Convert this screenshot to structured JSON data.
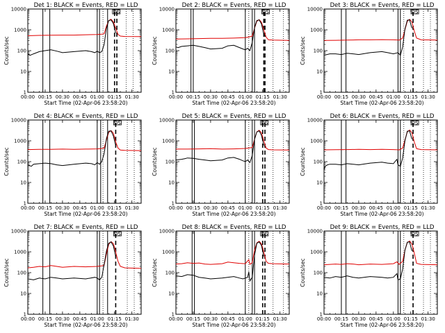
{
  "chart_data": [
    {
      "type": "line",
      "title": "Det 1: BLACK = Events, RED = LLD",
      "ylabel": "Counts/sec",
      "xlabel": "Start Time (02-Apr-06 23:58:20)",
      "bracket_label": "DS",
      "x_tick_labels": [
        "00:00",
        "00:15",
        "00:30",
        "00:45",
        "01:00",
        "01:15",
        "01:30"
      ],
      "x_ticks_min": [
        0,
        15,
        30,
        45,
        60,
        75,
        90
      ],
      "y_tick_labels": [
        "1",
        "10",
        "100",
        "1000",
        "10000"
      ],
      "ylim": [
        1,
        10000
      ],
      "yscale": "log",
      "xlim": [
        0,
        98
      ],
      "solid_markers_min": [
        13,
        19,
        60,
        62,
        69
      ],
      "dotted_markers_min": [
        65,
        85,
        91
      ],
      "dashed_markers_min": [
        75,
        77
      ],
      "red_series": {
        "x": [
          0,
          10,
          20,
          30,
          40,
          50,
          60,
          64,
          66,
          68,
          70,
          72,
          74,
          76,
          78,
          80,
          84,
          98
        ],
        "y": [
          520,
          540,
          550,
          560,
          560,
          580,
          600,
          620,
          650,
          1500,
          2800,
          3200,
          2400,
          1200,
          600,
          500,
          480,
          470
        ]
      },
      "black_series": {
        "x": [
          0,
          2,
          5,
          10,
          15,
          20,
          25,
          30,
          40,
          50,
          55,
          58,
          60,
          62,
          64,
          66,
          68,
          70,
          72,
          74,
          76
        ],
        "y": [
          70,
          60,
          70,
          90,
          100,
          110,
          95,
          80,
          90,
          100,
          90,
          80,
          95,
          80,
          90,
          200,
          1200,
          2800,
          3000,
          2000,
          700
        ]
      }
    },
    {
      "type": "line",
      "title": "Det 2: BLACK = Events, RED = LLD",
      "ylabel": "Counts/sec",
      "xlabel": "Start Time (02-Apr-06 23:58:20)",
      "bracket_label": "DS",
      "x_tick_labels": [
        "00:00",
        "00:15",
        "00:30",
        "00:45",
        "01:00",
        "01:15",
        "01:30"
      ],
      "x_ticks_min": [
        0,
        15,
        30,
        45,
        60,
        75,
        90
      ],
      "y_tick_labels": [
        "1",
        "10",
        "100",
        "1000",
        "10000"
      ],
      "ylim": [
        1,
        10000
      ],
      "yscale": "log",
      "xlim": [
        0,
        98
      ],
      "solid_markers_min": [
        13,
        15,
        60,
        66,
        68
      ],
      "dotted_markers_min": [
        63,
        84,
        93
      ],
      "dashed_markers_min": [
        76,
        77
      ],
      "red_series": {
        "x": [
          0,
          10,
          20,
          30,
          40,
          50,
          60,
          63,
          66,
          68,
          70,
          72,
          74,
          76,
          78,
          80,
          84,
          98
        ],
        "y": [
          360,
          370,
          380,
          390,
          390,
          400,
          420,
          450,
          500,
          1200,
          2600,
          3100,
          2300,
          1000,
          450,
          330,
          320,
          310
        ]
      },
      "black_series": {
        "x": [
          0,
          2,
          5,
          10,
          15,
          20,
          25,
          30,
          40,
          45,
          50,
          55,
          58,
          60,
          62,
          64,
          66,
          68,
          70,
          72,
          74,
          76
        ],
        "y": [
          150,
          140,
          160,
          170,
          180,
          160,
          140,
          120,
          130,
          170,
          180,
          140,
          120,
          110,
          130,
          100,
          250,
          1300,
          2800,
          3000,
          1900,
          600
        ]
      }
    },
    {
      "type": "line",
      "title": "Det 3: BLACK = Events, RED = LLD",
      "ylabel": "Counts/sec",
      "xlabel": "Start Time (02-Apr-06 23:58:20)",
      "bracket_label": "DS",
      "x_tick_labels": [
        "00:00",
        "00:15",
        "00:30",
        "00:45",
        "01:00",
        "01:15",
        "01:30"
      ],
      "x_ticks_min": [
        0,
        15,
        30,
        45,
        60,
        75,
        90
      ],
      "y_tick_labels": [
        "1",
        "10",
        "100",
        "1000",
        "10000"
      ],
      "ylim": [
        1,
        10000
      ],
      "yscale": "log",
      "xlim": [
        0,
        98
      ],
      "solid_markers_min": [
        15,
        19,
        64,
        66
      ],
      "dotted_markers_min": [
        69,
        86,
        92
      ],
      "dashed_markers_min": [
        77
      ],
      "red_series": {
        "x": [
          0,
          10,
          20,
          30,
          40,
          50,
          60,
          65,
          68,
          70,
          72,
          74,
          76,
          78,
          80,
          84,
          98
        ],
        "y": [
          310,
          315,
          320,
          330,
          330,
          340,
          330,
          320,
          400,
          1000,
          2600,
          3200,
          2400,
          900,
          400,
          330,
          320
        ]
      },
      "black_series": {
        "x": [
          0,
          5,
          10,
          15,
          20,
          25,
          30,
          40,
          50,
          55,
          60,
          64,
          66,
          68,
          70,
          72,
          74,
          76
        ],
        "y": [
          60,
          70,
          70,
          65,
          75,
          70,
          65,
          80,
          90,
          80,
          70,
          80,
          60,
          150,
          1100,
          2900,
          3000,
          1200
        ]
      }
    },
    {
      "type": "line",
      "title": "Det 4: BLACK = Events, RED = LLD",
      "ylabel": "Counts/sec",
      "xlabel": "Start Time (02-Apr-06 23:58:20)",
      "bracket_label": "DS",
      "x_tick_labels": [
        "00:00",
        "00:15",
        "00:30",
        "00:45",
        "01:00",
        "01:15",
        "01:30"
      ],
      "x_ticks_min": [
        0,
        15,
        30,
        45,
        60,
        75,
        90
      ],
      "y_tick_labels": [
        "1",
        "10",
        "100",
        "1000",
        "10000"
      ],
      "ylim": [
        1,
        10000
      ],
      "yscale": "log",
      "xlim": [
        0,
        98
      ],
      "solid_markers_min": [
        13,
        19,
        60,
        63,
        69
      ],
      "dotted_markers_min": [
        65,
        86,
        92
      ],
      "dashed_markers_min": [
        76
      ],
      "red_series": {
        "x": [
          0,
          10,
          20,
          30,
          40,
          50,
          60,
          64,
          66,
          68,
          70,
          72,
          74,
          76,
          78,
          80,
          84,
          98
        ],
        "y": [
          380,
          390,
          390,
          400,
          390,
          400,
          410,
          430,
          450,
          1100,
          2600,
          3100,
          2300,
          900,
          450,
          360,
          350,
          340
        ]
      },
      "black_series": {
        "x": [
          0,
          3,
          5,
          10,
          15,
          20,
          25,
          30,
          40,
          50,
          55,
          58,
          60,
          62,
          64,
          66,
          68,
          70,
          72,
          74,
          76
        ],
        "y": [
          70,
          60,
          75,
          80,
          85,
          80,
          70,
          65,
          75,
          85,
          80,
          70,
          90,
          75,
          100,
          250,
          1300,
          2900,
          3000,
          1700,
          600
        ]
      }
    },
    {
      "type": "line",
      "title": "Det 5: BLACK = Events, RED = LLD",
      "ylabel": "Counts/sec",
      "xlabel": "Start Time (02-Apr-06 23:58:20)",
      "bracket_label": "DS",
      "x_tick_labels": [
        "00:00",
        "00:15",
        "00:30",
        "00:45",
        "01:00",
        "01:15",
        "01:30"
      ],
      "x_ticks_min": [
        0,
        15,
        30,
        45,
        60,
        75,
        90
      ],
      "y_tick_labels": [
        "1",
        "10",
        "100",
        "1000",
        "10000"
      ],
      "ylim": [
        1,
        10000
      ],
      "yscale": "log",
      "xlim": [
        0,
        98
      ],
      "solid_markers_min": [
        14,
        16,
        60,
        66,
        68
      ],
      "dotted_markers_min": [
        63,
        84,
        93
      ],
      "dashed_markers_min": [
        75,
        77
      ],
      "red_series": {
        "x": [
          0,
          10,
          20,
          30,
          40,
          50,
          60,
          63,
          66,
          68,
          70,
          72,
          74,
          76,
          78,
          80,
          84,
          98
        ],
        "y": [
          400,
          400,
          410,
          420,
          400,
          410,
          430,
          450,
          480,
          1200,
          2700,
          3200,
          2400,
          1000,
          450,
          380,
          370,
          360
        ]
      },
      "black_series": {
        "x": [
          0,
          5,
          8,
          10,
          15,
          20,
          25,
          30,
          40,
          45,
          50,
          55,
          58,
          60,
          62,
          64,
          66,
          68,
          70,
          72,
          74,
          76
        ],
        "y": [
          120,
          130,
          140,
          150,
          145,
          130,
          120,
          110,
          120,
          150,
          160,
          130,
          110,
          100,
          120,
          90,
          200,
          1200,
          2700,
          3000,
          1800,
          600
        ]
      }
    },
    {
      "type": "line",
      "title": "Det 6: BLACK = Events, RED = LLD",
      "ylabel": "Counts/sec",
      "xlabel": "Start Time (02-Apr-06 23:58:20)",
      "bracket_label": "DS",
      "x_tick_labels": [
        "00:00",
        "00:15",
        "00:30",
        "00:45",
        "01:00",
        "01:15",
        "01:30"
      ],
      "x_ticks_min": [
        0,
        15,
        30,
        45,
        60,
        75,
        90
      ],
      "y_tick_labels": [
        "1",
        "10",
        "100",
        "1000",
        "10000"
      ],
      "ylim": [
        1,
        10000
      ],
      "yscale": "log",
      "xlim": [
        0,
        98
      ],
      "solid_markers_min": [
        15,
        19,
        64,
        66
      ],
      "dotted_markers_min": [
        69,
        86,
        92
      ],
      "dashed_markers_min": [
        77
      ],
      "red_series": {
        "x": [
          0,
          10,
          20,
          30,
          40,
          50,
          60,
          65,
          68,
          70,
          72,
          74,
          76,
          78,
          80,
          84,
          98
        ],
        "y": [
          370,
          375,
          380,
          390,
          380,
          390,
          380,
          370,
          450,
          1100,
          2700,
          3300,
          2500,
          900,
          420,
          380,
          370
        ]
      },
      "black_series": {
        "x": [
          0,
          1,
          3,
          5,
          10,
          15,
          20,
          25,
          30,
          40,
          50,
          55,
          60,
          63,
          64,
          66,
          68,
          70,
          72,
          74,
          76
        ],
        "y": [
          40,
          60,
          70,
          75,
          75,
          70,
          80,
          75,
          70,
          85,
          95,
          85,
          80,
          130,
          70,
          60,
          150,
          1000,
          2900,
          3000,
          1200
        ]
      }
    },
    {
      "type": "line",
      "title": "Det 7: BLACK = Events, RED = LLD",
      "ylabel": "Counts/sec",
      "xlabel": "Start Time (02-Apr-06 23:58:20)",
      "bracket_label": "DS",
      "x_tick_labels": [
        "00:00",
        "00:15",
        "00:30",
        "00:45",
        "01:00",
        "01:15",
        "01:30"
      ],
      "x_ticks_min": [
        0,
        15,
        30,
        45,
        60,
        75,
        90
      ],
      "y_tick_labels": [
        "1",
        "10",
        "100",
        "1000",
        "10000"
      ],
      "ylim": [
        1,
        10000
      ],
      "yscale": "log",
      "xlim": [
        0,
        98
      ],
      "solid_markers_min": [
        13,
        19,
        60,
        62,
        69
      ],
      "dotted_markers_min": [
        65,
        86,
        92
      ],
      "dashed_markers_min": [
        76
      ],
      "red_series": {
        "x": [
          0,
          5,
          10,
          15,
          20,
          25,
          30,
          40,
          50,
          60,
          64,
          66,
          68,
          70,
          72,
          74,
          76,
          78,
          80,
          84,
          98
        ],
        "y": [
          170,
          180,
          200,
          190,
          220,
          200,
          180,
          200,
          190,
          200,
          210,
          230,
          800,
          2300,
          3100,
          2500,
          1000,
          350,
          200,
          170,
          160
        ]
      },
      "black_series": {
        "x": [
          0,
          5,
          10,
          15,
          20,
          25,
          30,
          40,
          50,
          58,
          60,
          62,
          64,
          66,
          68,
          70,
          72,
          74,
          76
        ],
        "y": [
          50,
          45,
          55,
          50,
          60,
          55,
          50,
          55,
          50,
          60,
          55,
          45,
          60,
          250,
          1100,
          2600,
          3000,
          1900,
          600
        ]
      }
    },
    {
      "type": "line",
      "title": "Det 8: BLACK = Events, RED = LLD",
      "ylabel": "Counts/sec",
      "xlabel": "Start Time (02-Apr-06 23:58:20)",
      "bracket_label": "DS",
      "x_tick_labels": [
        "00:00",
        "00:15",
        "00:30",
        "00:45",
        "01:00",
        "01:15",
        "01:30"
      ],
      "x_ticks_min": [
        0,
        15,
        30,
        45,
        60,
        75,
        90
      ],
      "y_tick_labels": [
        "1",
        "10",
        "100",
        "1000",
        "10000"
      ],
      "ylim": [
        1,
        10000
      ],
      "yscale": "log",
      "xlim": [
        0,
        98
      ],
      "solid_markers_min": [
        14,
        16,
        60,
        66,
        68
      ],
      "dotted_markers_min": [
        63,
        84,
        93
      ],
      "dashed_markers_min": [
        75,
        77
      ],
      "red_series": {
        "x": [
          0,
          5,
          10,
          15,
          20,
          25,
          30,
          40,
          45,
          50,
          55,
          60,
          63,
          64,
          66,
          68,
          70,
          72,
          74,
          76,
          78,
          80,
          84,
          98
        ],
        "y": [
          260,
          270,
          300,
          280,
          290,
          260,
          250,
          270,
          320,
          300,
          280,
          270,
          420,
          250,
          300,
          1200,
          2700,
          3200,
          2400,
          1000,
          350,
          280,
          270,
          260
        ]
      },
      "black_series": {
        "x": [
          0,
          5,
          10,
          15,
          20,
          25,
          30,
          40,
          50,
          55,
          58,
          60,
          62,
          63,
          64,
          66,
          68,
          70,
          72,
          74,
          76
        ],
        "y": [
          70,
          65,
          80,
          75,
          60,
          55,
          50,
          55,
          65,
          55,
          50,
          55,
          60,
          110,
          40,
          60,
          700,
          2600,
          3000,
          2000,
          600
        ]
      }
    },
    {
      "type": "line",
      "title": "Det 9: BLACK = Events, RED = LLD",
      "ylabel": "Counts/sec",
      "xlabel": "Start Time (02-Apr-06 23:58:20)",
      "bracket_label": "DS",
      "x_tick_labels": [
        "00:00",
        "00:15",
        "00:30",
        "00:45",
        "01:00",
        "01:15",
        "01:30"
      ],
      "x_ticks_min": [
        0,
        15,
        30,
        45,
        60,
        75,
        90
      ],
      "y_tick_labels": [
        "1",
        "10",
        "100",
        "1000",
        "10000"
      ],
      "ylim": [
        1,
        10000
      ],
      "yscale": "log",
      "xlim": [
        0,
        98
      ],
      "solid_markers_min": [
        15,
        19,
        64,
        66
      ],
      "dotted_markers_min": [
        69,
        86,
        92
      ],
      "dashed_markers_min": [
        77
      ],
      "red_series": {
        "x": [
          0,
          5,
          10,
          15,
          20,
          25,
          30,
          40,
          50,
          55,
          60,
          63,
          65,
          68,
          70,
          72,
          74,
          76,
          78,
          80,
          84,
          98
        ],
        "y": [
          240,
          250,
          260,
          250,
          270,
          260,
          240,
          260,
          250,
          260,
          270,
          330,
          250,
          350,
          1200,
          2800,
          3300,
          2400,
          900,
          280,
          250,
          240
        ]
      },
      "black_series": {
        "x": [
          0,
          5,
          10,
          15,
          20,
          25,
          30,
          40,
          50,
          55,
          60,
          63,
          64,
          66,
          68,
          70,
          72,
          74,
          76
        ],
        "y": [
          60,
          55,
          65,
          60,
          70,
          60,
          55,
          65,
          60,
          55,
          60,
          90,
          45,
          50,
          150,
          1200,
          2900,
          3000,
          1100
        ]
      }
    }
  ]
}
